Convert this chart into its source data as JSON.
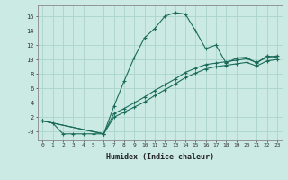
{
  "xlabel": "Humidex (Indice chaleur)",
  "ylabel": "",
  "background_color": "#cceae4",
  "grid_color": "#aad4cc",
  "line_color": "#1a6b5a",
  "xlim": [
    -0.5,
    23.5
  ],
  "ylim": [
    -1.2,
    17.5
  ],
  "yticks": [
    0,
    2,
    4,
    6,
    8,
    10,
    12,
    14,
    16
  ],
  "ytick_labels": [
    "-0",
    "2",
    "4",
    "6",
    "8",
    "10",
    "12",
    "14",
    "16"
  ],
  "xticks": [
    0,
    1,
    2,
    3,
    4,
    5,
    6,
    7,
    8,
    9,
    10,
    11,
    12,
    13,
    14,
    15,
    16,
    17,
    18,
    19,
    20,
    21,
    22,
    23
  ],
  "line1_x": [
    0,
    1,
    2,
    3,
    4,
    5,
    6,
    7,
    8,
    9,
    10,
    11,
    12,
    13,
    14,
    15,
    16,
    17,
    18,
    19,
    20,
    21,
    22,
    23
  ],
  "line1_y": [
    1.5,
    1.2,
    -0.3,
    -0.3,
    -0.3,
    -0.3,
    -0.3,
    3.5,
    7.0,
    10.3,
    13.0,
    14.3,
    16.0,
    16.5,
    16.3,
    14.0,
    11.5,
    12.0,
    9.5,
    10.2,
    10.3,
    9.5,
    10.5,
    10.3
  ],
  "line2_x": [
    0,
    6,
    7,
    8,
    9,
    10,
    11,
    12,
    13,
    14,
    15,
    16,
    17,
    18,
    19,
    20,
    21,
    22,
    23
  ],
  "line2_y": [
    1.5,
    -0.3,
    2.5,
    3.2,
    4.0,
    4.8,
    5.7,
    6.5,
    7.3,
    8.2,
    8.8,
    9.3,
    9.5,
    9.7,
    9.9,
    10.1,
    9.6,
    10.3,
    10.5
  ],
  "line3_x": [
    0,
    6,
    7,
    8,
    9,
    10,
    11,
    12,
    13,
    14,
    15,
    16,
    17,
    18,
    19,
    20,
    21,
    22,
    23
  ],
  "line3_y": [
    1.5,
    -0.3,
    2.0,
    2.7,
    3.4,
    4.1,
    5.0,
    5.8,
    6.6,
    7.5,
    8.1,
    8.7,
    9.0,
    9.2,
    9.4,
    9.6,
    9.1,
    9.8,
    10.0
  ]
}
